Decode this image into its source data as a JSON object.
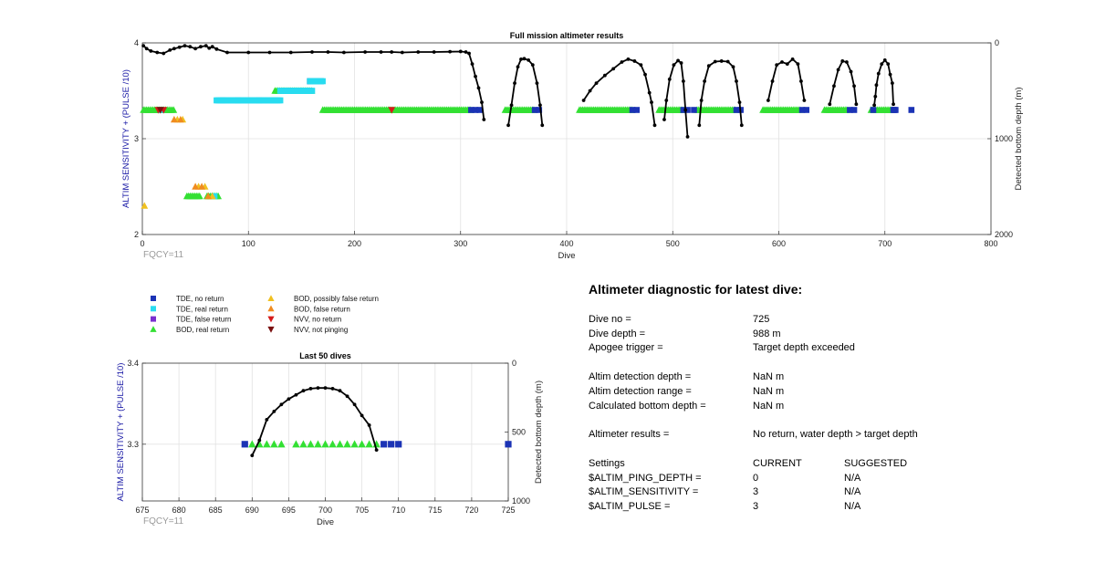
{
  "chart_data": [
    {
      "type": "scatter",
      "title": "Full mission altimeter results",
      "xlabel": "Dive",
      "ylabel": "ALTIM SENSITIVITY + (PULSE /10)",
      "y2label": "Detected bottom depth (m)",
      "annotation": "FQCY=11",
      "xlim": [
        0,
        800
      ],
      "ylim": [
        2,
        4
      ],
      "y2lim": [
        0,
        2000
      ],
      "y2_reversed": true,
      "xticks": [
        0,
        100,
        200,
        300,
        400,
        500,
        600,
        700,
        800
      ],
      "yticks": [
        2,
        3,
        4
      ],
      "y2ticks": [
        0,
        1000,
        2000
      ],
      "grid": true,
      "colors": {
        "tde_no": "#1b33b5",
        "tde_real": "#28dcf0",
        "tde_false": "#7a2fd0",
        "bod_real": "#33e033",
        "bod_possibly": "#f0c020",
        "bod_false": "#f08c20",
        "nvv_no": "#d61a1a",
        "nvv_notping": "#7a1010",
        "depth": "#000000"
      },
      "series": [
        {
          "name": "BOD, real return",
          "marker": "triangle-up",
          "color": "#33e033",
          "ranges": [
            [
              1,
              30,
              3.3
            ],
            [
              170,
              310,
              3.3
            ],
            [
              342,
              370,
              3.3
            ],
            [
              412,
              462,
              3.3
            ],
            [
              487,
              510,
              3.3
            ],
            [
              523,
              560,
              3.3
            ],
            [
              585,
              620,
              3.3
            ],
            [
              643,
              665,
              3.3
            ],
            [
              687,
              707,
              3.3
            ],
            [
              125,
              160,
              3.5
            ],
            [
              42,
              55,
              2.4
            ],
            [
              61,
              72,
              2.4
            ]
          ]
        },
        {
          "name": "TDE, no return",
          "marker": "square",
          "color": "#1b33b5",
          "points": [
            [
              310,
              3.3
            ],
            [
              314,
              3.3
            ],
            [
              318,
              3.3
            ],
            [
              370,
              3.3
            ],
            [
              374,
              3.3
            ],
            [
              462,
              3.3
            ],
            [
              466,
              3.3
            ],
            [
              510,
              3.3
            ],
            [
              514,
              3.3
            ],
            [
              520,
              3.3
            ],
            [
              560,
              3.3
            ],
            [
              564,
              3.3
            ],
            [
              622,
              3.3
            ],
            [
              626,
              3.3
            ],
            [
              667,
              3.3
            ],
            [
              671,
              3.3
            ],
            [
              689,
              3.3
            ],
            [
              708,
              3.3
            ],
            [
              709,
              3.3
            ],
            [
              710,
              3.3
            ],
            [
              725,
              3.3
            ],
            [
              158,
              3.6
            ],
            [
              163,
              3.6
            ],
            [
              168,
              3.6
            ],
            [
              135,
              3.5
            ],
            [
              140,
              3.5
            ],
            [
              90,
              3.4
            ],
            [
              110,
              3.4
            ],
            [
              76,
              3.4
            ]
          ]
        },
        {
          "name": "TDE, real return",
          "marker": "square",
          "color": "#28dcf0",
          "ranges": [
            [
              70,
              130,
              3.4
            ],
            [
              130,
              160,
              3.5
            ],
            [
              158,
              170,
              3.6
            ]
          ],
          "points": [
            [
              68,
              2.4
            ],
            [
              18,
              3.3
            ]
          ]
        },
        {
          "name": "BOD, possibly false return",
          "marker": "triangle-up",
          "color": "#f0c020",
          "points": [
            [
              2,
              2.3
            ],
            [
              33,
              3.2
            ],
            [
              38,
              3.2
            ],
            [
              53,
              2.5
            ],
            [
              59,
              2.5
            ],
            [
              66,
              2.4
            ]
          ]
        },
        {
          "name": "BOD, false return",
          "marker": "triangle-up",
          "color": "#f08c20",
          "points": [
            [
              30,
              3.2
            ],
            [
              36,
              3.2
            ],
            [
              50,
              2.5
            ],
            [
              56,
              2.5
            ],
            [
              62,
              2.4
            ]
          ]
        },
        {
          "name": "NVV, no return",
          "marker": "triangle-down",
          "color": "#d61a1a",
          "points": [
            [
              15,
              3.3
            ],
            [
              20,
              3.3
            ],
            [
              235,
              3.3
            ]
          ]
        },
        {
          "name": "NVV, not pinging",
          "marker": "triangle-down",
          "color": "#7a1010",
          "points": [
            [
              17,
              3.3
            ]
          ]
        }
      ],
      "depth_series": [
        {
          "name": "Detected bottom depth",
          "axis": "right",
          "points": [
            [
              1,
              30
            ],
            [
              4,
              60
            ],
            [
              8,
              85
            ],
            [
              14,
              100
            ],
            [
              20,
              110
            ],
            [
              26,
              75
            ],
            [
              30,
              60
            ],
            [
              35,
              45
            ],
            [
              40,
              30
            ],
            [
              45,
              40
            ],
            [
              50,
              60
            ],
            [
              55,
              40
            ],
            [
              60,
              30
            ],
            [
              63,
              55
            ],
            [
              66,
              40
            ],
            [
              70,
              65
            ],
            [
              80,
              100
            ],
            [
              100,
              100
            ],
            [
              120,
              100
            ],
            [
              140,
              100
            ],
            [
              160,
              95
            ],
            [
              175,
              95
            ],
            [
              190,
              100
            ],
            [
              210,
              95
            ],
            [
              225,
              95
            ],
            [
              235,
              95
            ],
            [
              245,
              100
            ],
            [
              260,
              95
            ],
            [
              275,
              95
            ],
            [
              290,
              92
            ],
            [
              300,
              90
            ],
            [
              305,
              95
            ],
            [
              308,
              110
            ],
            [
              311,
              220
            ],
            [
              314,
              350
            ],
            [
              317,
              470
            ],
            [
              320,
              620
            ],
            [
              322,
              800
            ]
          ]
        },
        {
          "name": "Detected bottom depth",
          "axis": "right",
          "points": [
            [
              345,
              860
            ],
            [
              348,
              650
            ],
            [
              351,
              420
            ],
            [
              354,
              250
            ],
            [
              357,
              170
            ],
            [
              360,
              165
            ],
            [
              364,
              180
            ],
            [
              368,
              230
            ],
            [
              372,
              420
            ],
            [
              375,
              650
            ],
            [
              377,
              860
            ]
          ]
        },
        {
          "name": "Detected bottom depth",
          "axis": "right",
          "points": [
            [
              416,
              600
            ],
            [
              422,
              500
            ],
            [
              428,
              420
            ],
            [
              436,
              340
            ],
            [
              444,
              270
            ],
            [
              452,
              200
            ],
            [
              458,
              170
            ],
            [
              464,
              190
            ],
            [
              470,
              230
            ],
            [
              474,
              330
            ],
            [
              478,
              520
            ],
            [
              480,
              620
            ],
            [
              483,
              860
            ]
          ]
        },
        {
          "name": "Detected bottom depth",
          "axis": "right",
          "points": [
            [
              492,
              800
            ],
            [
              494,
              600
            ],
            [
              497,
              380
            ],
            [
              501,
              230
            ],
            [
              505,
              185
            ],
            [
              508,
              210
            ],
            [
              510,
              400
            ],
            [
              512,
              700
            ],
            [
              514,
              980
            ]
          ]
        },
        {
          "name": "Detected bottom depth",
          "axis": "right",
          "points": [
            [
              525,
              860
            ],
            [
              527,
              600
            ],
            [
              530,
              400
            ],
            [
              534,
              240
            ],
            [
              540,
              195
            ],
            [
              546,
              190
            ],
            [
              552,
              195
            ],
            [
              557,
              250
            ],
            [
              560,
              400
            ],
            [
              563,
              620
            ],
            [
              565,
              860
            ]
          ]
        },
        {
          "name": "Detected bottom depth",
          "axis": "right",
          "points": [
            [
              590,
              600
            ],
            [
              594,
              400
            ],
            [
              598,
              230
            ],
            [
              603,
              200
            ],
            [
              608,
              220
            ],
            [
              613,
              170
            ],
            [
              618,
              220
            ],
            [
              621,
              400
            ],
            [
              624,
              600
            ]
          ]
        },
        {
          "name": "Detected bottom depth",
          "axis": "right",
          "points": [
            [
              648,
              640
            ],
            [
              652,
              450
            ],
            [
              656,
              280
            ],
            [
              660,
              190
            ],
            [
              664,
              200
            ],
            [
              668,
              300
            ],
            [
              671,
              450
            ],
            [
              673,
              640
            ]
          ]
        },
        {
          "name": "Detected bottom depth",
          "axis": "right",
          "points": [
            [
              690,
              650
            ],
            [
              691,
              560
            ],
            [
              692,
              440
            ],
            [
              694,
              320
            ],
            [
              697,
              220
            ],
            [
              700,
              180
            ],
            [
              703,
              220
            ],
            [
              705,
              330
            ],
            [
              707,
              420
            ],
            [
              708,
              640
            ]
          ]
        }
      ]
    },
    {
      "type": "scatter",
      "title": "Last 50 dives",
      "xlabel": "Dive",
      "ylabel": "ALTIM SENSITIVITY + (PULSE /10)",
      "y2label": "Detected bottom depth (m)",
      "annotation": "FQCY=11",
      "xlim": [
        675,
        725
      ],
      "ylim": [
        3.23,
        3.4
      ],
      "y2lim": [
        0,
        1000
      ],
      "y2_reversed": true,
      "xticks": [
        675,
        680,
        685,
        690,
        695,
        700,
        705,
        710,
        715,
        720,
        725
      ],
      "yticks": [
        3.3,
        3.4
      ],
      "y2ticks": [
        0,
        500,
        1000
      ],
      "grid": true,
      "series": [
        {
          "name": "TDE, no return",
          "marker": "square",
          "color": "#1b33b5",
          "x": [
            689,
            708,
            709,
            710,
            725
          ],
          "y": [
            3.3,
            3.3,
            3.3,
            3.3,
            3.3
          ]
        },
        {
          "name": "BOD, real return",
          "marker": "triangle-up",
          "color": "#33e033",
          "x": [
            690,
            691,
            692,
            693,
            694,
            696,
            697,
            698,
            699,
            700,
            701,
            702,
            703,
            704,
            705,
            706,
            707
          ],
          "y": [
            3.3,
            3.3,
            3.3,
            3.3,
            3.3,
            3.3,
            3.3,
            3.3,
            3.3,
            3.3,
            3.3,
            3.3,
            3.3,
            3.3,
            3.3,
            3.3,
            3.3
          ]
        }
      ],
      "depth_series": [
        {
          "name": "Detected bottom depth",
          "axis": "right",
          "x": [
            690,
            691,
            692,
            693,
            694,
            695,
            696,
            697,
            698,
            699,
            700,
            701,
            702,
            703,
            704,
            705,
            706,
            707
          ],
          "y": [
            670,
            560,
            410,
            350,
            300,
            260,
            230,
            200,
            185,
            180,
            180,
            185,
            200,
            240,
            300,
            380,
            450,
            630
          ]
        }
      ]
    }
  ],
  "legend": {
    "items": [
      {
        "label": "TDE, no return",
        "marker": "square",
        "color": "#1b33b5"
      },
      {
        "label": "TDE, real return",
        "marker": "square",
        "color": "#28dcf0"
      },
      {
        "label": "TDE, false return",
        "marker": "square",
        "color": "#7a2fd0"
      },
      {
        "label": "BOD, real return",
        "marker": "triangle-up",
        "color": "#33e033"
      },
      {
        "label": "BOD, possibly false return",
        "marker": "triangle-up",
        "color": "#f0c020"
      },
      {
        "label": "BOD, false return",
        "marker": "triangle-up",
        "color": "#f08c20"
      },
      {
        "label": "NVV, no return",
        "marker": "triangle-down",
        "color": "#d61a1a"
      },
      {
        "label": "NVV, not pinging",
        "marker": "triangle-down",
        "color": "#7a1010"
      }
    ]
  },
  "diagnostic": {
    "title": "Altimeter diagnostic for latest dive:",
    "dive_no_label": "Dive no =",
    "dive_no_value": "725",
    "dive_depth_label": "Dive depth =",
    "dive_depth_value": "988 m",
    "apogee_label": "Apogee trigger =",
    "apogee_value": "Target depth exceeded",
    "detect_depth_label": "Altim detection depth =",
    "detect_depth_value": "NaN m",
    "detect_range_label": "Altim detection range =",
    "detect_range_value": "NaN m",
    "calc_depth_label": "Calculated bottom depth =",
    "calc_depth_value": "NaN m",
    "results_label": "Altimeter results =",
    "results_value": "No return, water depth > target depth",
    "settings_header": "Settings",
    "current_header": "CURRENT",
    "suggested_header": "SUGGESTED",
    "ping_depth_label": "$ALTIM_PING_DEPTH =",
    "ping_depth_current": "0",
    "ping_depth_suggested": "N/A",
    "sensitivity_label": "$ALTIM_SENSITIVITY =",
    "sensitivity_current": "3",
    "sensitivity_suggested": "N/A",
    "pulse_label": "$ALTIM_PULSE =",
    "pulse_current": "3",
    "pulse_suggested": "N/A"
  }
}
